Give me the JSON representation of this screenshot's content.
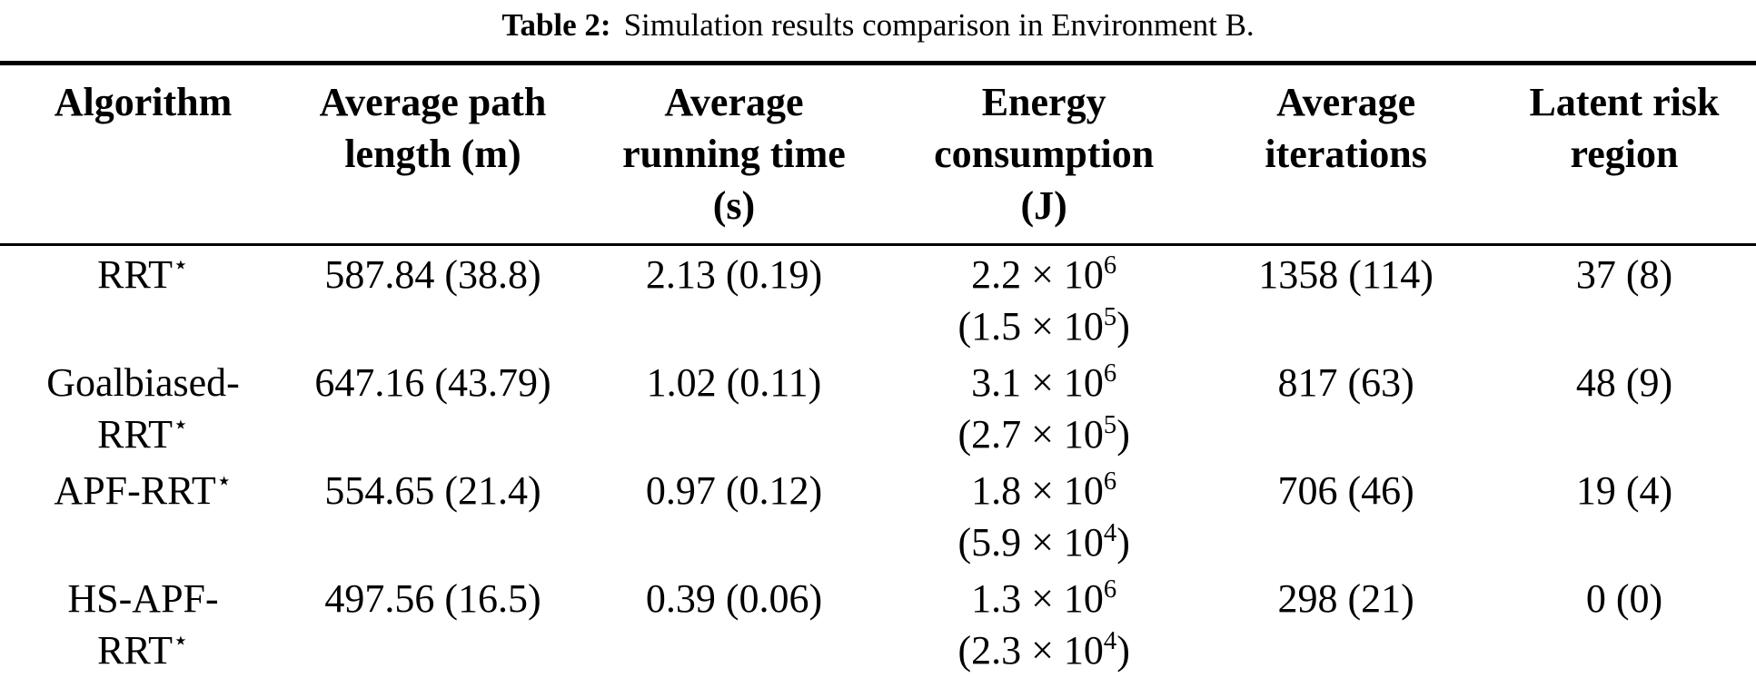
{
  "caption": {
    "label": "Table 2:",
    "text": "Simulation results comparison in Environment B."
  },
  "colors": {
    "text": "#000000",
    "background": "#ffffff",
    "rule": "#000000"
  },
  "table": {
    "columns": [
      {
        "id": "algorithm",
        "lines": [
          "Algorithm"
        ]
      },
      {
        "id": "avg-path-length",
        "lines": [
          "Average path",
          "length (m)"
        ]
      },
      {
        "id": "avg-running-time",
        "lines": [
          "Average",
          "running time",
          "(s)"
        ]
      },
      {
        "id": "energy-consumption",
        "lines": [
          "Energy",
          "consumption",
          "(J)"
        ]
      },
      {
        "id": "avg-iterations",
        "lines": [
          "Average",
          "iterations"
        ]
      },
      {
        "id": "latent-risk-region",
        "lines": [
          "Latent risk",
          "region"
        ]
      }
    ],
    "rows": [
      {
        "cells": [
          {
            "lines": [
              [
                {
                  "t": "RRT"
                },
                {
                  "t": "⋆",
                  "sup": true
                }
              ]
            ]
          },
          {
            "lines": [
              [
                {
                  "t": "587.84 (38.8)"
                }
              ]
            ]
          },
          {
            "lines": [
              [
                {
                  "t": "2.13 (0.19)"
                }
              ]
            ]
          },
          {
            "lines": [
              [
                {
                  "t": "2.2 × 10"
                },
                {
                  "t": "6",
                  "sup": true
                }
              ],
              [
                {
                  "t": "(1.5 × 10"
                },
                {
                  "t": "5",
                  "sup": true
                },
                {
                  "t": ")"
                }
              ]
            ]
          },
          {
            "lines": [
              [
                {
                  "t": "1358 (114)"
                }
              ]
            ]
          },
          {
            "lines": [
              [
                {
                  "t": "37 (8)"
                }
              ]
            ]
          }
        ]
      },
      {
        "cells": [
          {
            "lines": [
              [
                {
                  "t": "Goalbiased-"
                }
              ],
              [
                {
                  "t": "RRT"
                },
                {
                  "t": "⋆",
                  "sup": true
                }
              ]
            ]
          },
          {
            "lines": [
              [
                {
                  "t": "647.16 (43.79)"
                }
              ]
            ]
          },
          {
            "lines": [
              [
                {
                  "t": "1.02 (0.11)"
                }
              ]
            ]
          },
          {
            "lines": [
              [
                {
                  "t": "3.1 × 10"
                },
                {
                  "t": "6",
                  "sup": true
                }
              ],
              [
                {
                  "t": "(2.7 × 10"
                },
                {
                  "t": "5",
                  "sup": true
                },
                {
                  "t": ")"
                }
              ]
            ]
          },
          {
            "lines": [
              [
                {
                  "t": "817 (63)"
                }
              ]
            ]
          },
          {
            "lines": [
              [
                {
                  "t": "48 (9)"
                }
              ]
            ]
          }
        ]
      },
      {
        "cells": [
          {
            "lines": [
              [
                {
                  "t": "APF-RRT"
                },
                {
                  "t": "⋆",
                  "sup": true
                }
              ]
            ]
          },
          {
            "lines": [
              [
                {
                  "t": "554.65 (21.4)"
                }
              ]
            ]
          },
          {
            "lines": [
              [
                {
                  "t": "0.97 (0.12)"
                }
              ]
            ]
          },
          {
            "lines": [
              [
                {
                  "t": "1.8 × 10"
                },
                {
                  "t": "6",
                  "sup": true
                }
              ],
              [
                {
                  "t": "(5.9 × 10"
                },
                {
                  "t": "4",
                  "sup": true
                },
                {
                  "t": ")"
                }
              ]
            ]
          },
          {
            "lines": [
              [
                {
                  "t": "706 (46)"
                }
              ]
            ]
          },
          {
            "lines": [
              [
                {
                  "t": "19 (4)"
                }
              ]
            ]
          }
        ]
      },
      {
        "cells": [
          {
            "lines": [
              [
                {
                  "t": "HS-APF-"
                }
              ],
              [
                {
                  "t": "RRT"
                },
                {
                  "t": "⋆",
                  "sup": true
                }
              ]
            ]
          },
          {
            "lines": [
              [
                {
                  "t": "497.56 (16.5)"
                }
              ]
            ]
          },
          {
            "lines": [
              [
                {
                  "t": "0.39 (0.06)"
                }
              ]
            ]
          },
          {
            "lines": [
              [
                {
                  "t": "1.3 × 10"
                },
                {
                  "t": "6",
                  "sup": true
                }
              ],
              [
                {
                  "t": "(2.3 × 10"
                },
                {
                  "t": "4",
                  "sup": true
                },
                {
                  "t": ")"
                }
              ]
            ]
          },
          {
            "lines": [
              [
                {
                  "t": "298 (21)"
                }
              ]
            ]
          },
          {
            "lines": [
              [
                {
                  "t": "0 (0)"
                }
              ]
            ]
          }
        ]
      }
    ]
  }
}
